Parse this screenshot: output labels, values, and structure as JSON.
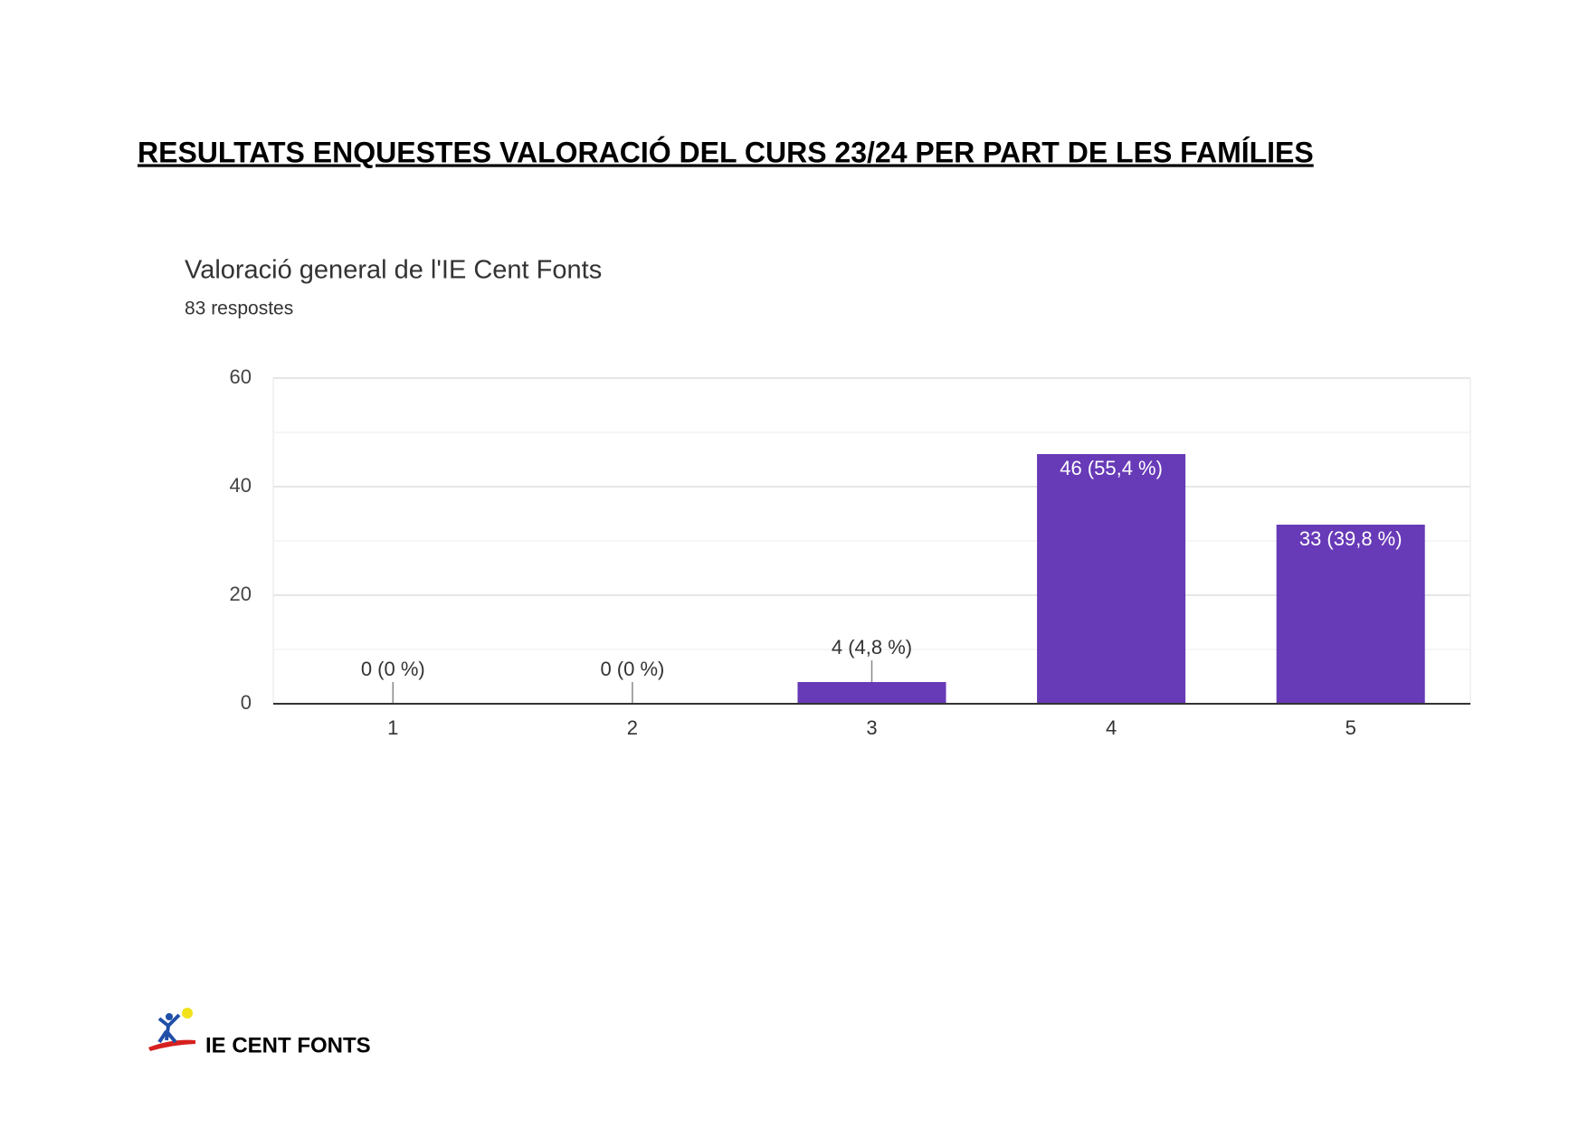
{
  "heading": "RESULTATS ENQUESTES VALORACIÓ DEL CURS 23/24 PER PART DE LES FAMÍLIES",
  "chart_data": {
    "type": "bar",
    "title": "Valoració general de l'IE Cent Fonts",
    "subtitle": "83 respostes",
    "categories": [
      "1",
      "2",
      "3",
      "4",
      "5"
    ],
    "values": [
      0,
      0,
      4,
      46,
      33
    ],
    "value_labels": [
      "0 (0 %)",
      "0 (0 %)",
      "4 (4,8 %)",
      "46 (55,4 %)",
      "33 (39,8 %)"
    ],
    "color": "#673ab7",
    "ylim": [
      0,
      60
    ],
    "yticks": [
      0,
      20,
      40,
      60
    ],
    "grid": true
  },
  "footer": {
    "logo_text": "IE CENT FONTS"
  }
}
